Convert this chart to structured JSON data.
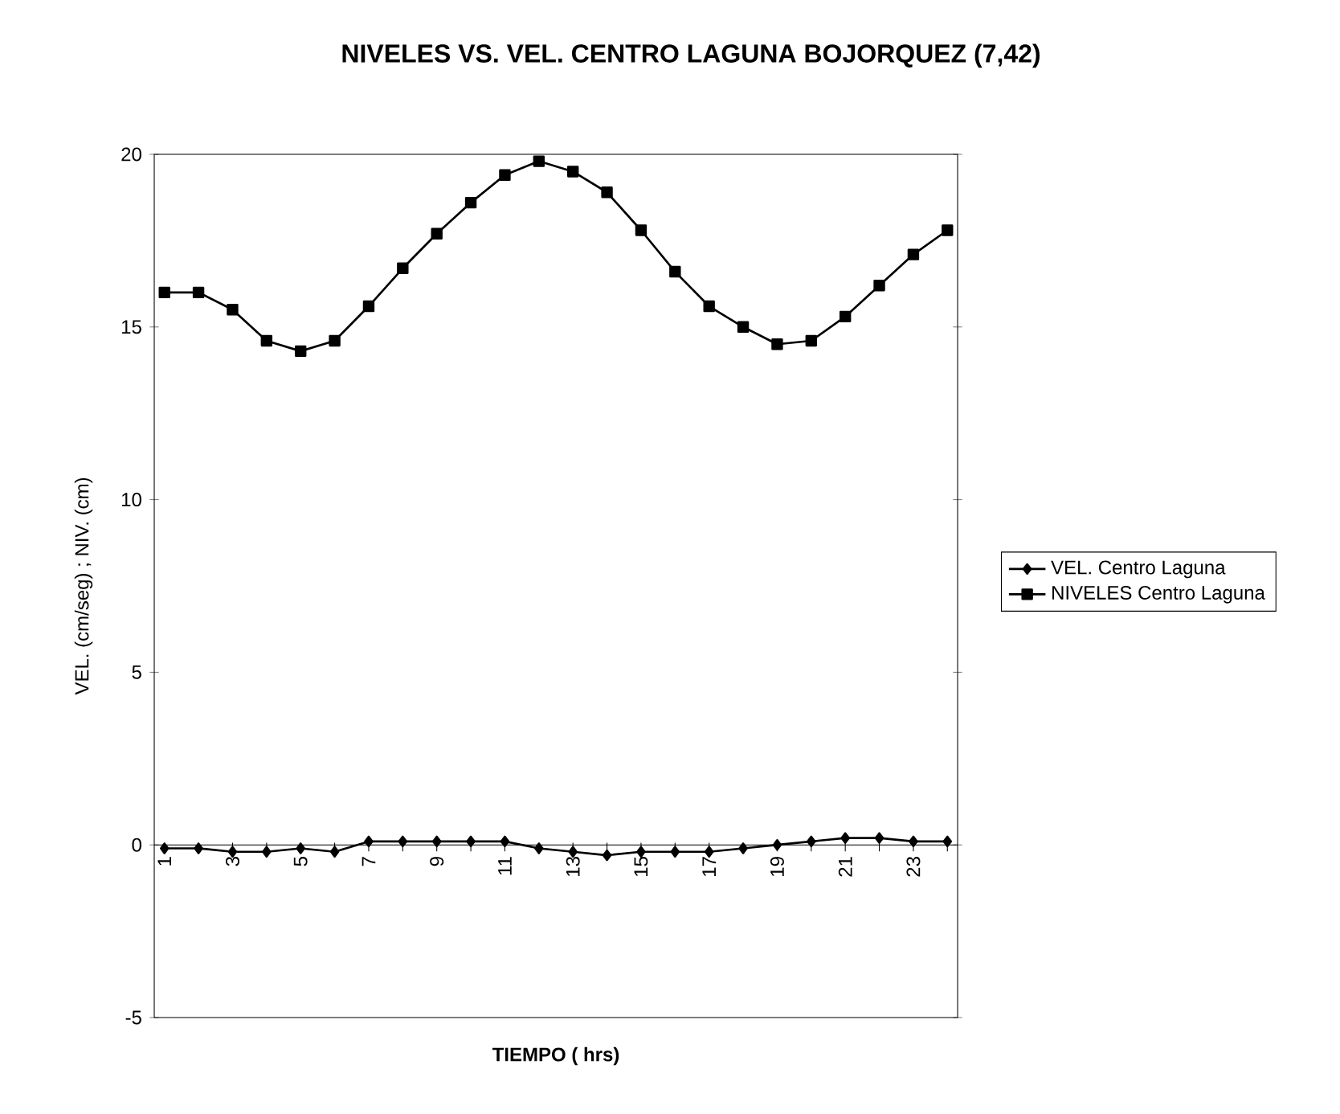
{
  "chart_data": {
    "type": "line",
    "title": "NIVELES VS. VEL. CENTRO LAGUNA BOJORQUEZ (7,42)",
    "xlabel": "TIEMPO ( hrs)",
    "ylabel": "VEL. (cm/seg) ; NIV. (cm)",
    "categories": [
      "1",
      null,
      "3",
      null,
      "5",
      null,
      "7",
      null,
      "9",
      null,
      "11",
      null,
      "13",
      null,
      "15",
      null,
      "17",
      null,
      "19",
      null,
      "21",
      null,
      "23",
      null
    ],
    "series": [
      {
        "name": "VEL. Centro Laguna",
        "color": "#000000",
        "marker": "diamond",
        "values": [
          -0.1,
          -0.1,
          -0.2,
          -0.2,
          -0.1,
          -0.2,
          0.1,
          0.1,
          0.1,
          0.1,
          0.1,
          -0.1,
          -0.2,
          -0.3,
          -0.2,
          -0.2,
          -0.2,
          -0.1,
          0.0,
          0.1,
          0.2,
          0.2,
          0.1,
          0.1
        ]
      },
      {
        "name": "NIVELES Centro Laguna",
        "color": "#000000",
        "marker": "square",
        "values": [
          16.0,
          16.0,
          15.5,
          14.6,
          14.3,
          14.6,
          15.6,
          16.7,
          17.7,
          18.6,
          19.4,
          19.8,
          19.5,
          18.9,
          17.8,
          16.6,
          15.6,
          15.0,
          14.5,
          14.6,
          15.3,
          16.2,
          17.1,
          17.8
        ]
      }
    ],
    "ylim": [
      -5,
      20
    ],
    "yticks": [
      -5,
      0,
      5,
      10,
      15,
      20
    ],
    "legend": "right",
    "grid": false,
    "line_style": "solid"
  }
}
